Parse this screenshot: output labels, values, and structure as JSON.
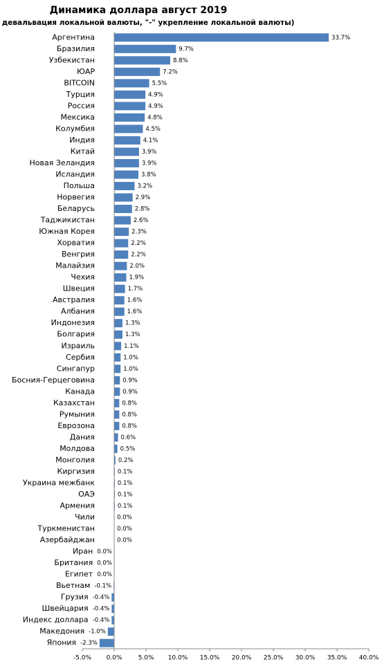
{
  "chart_data": {
    "type": "bar",
    "orientation": "horizontal",
    "title": "Динамика доллара август 2019",
    "subtitle": "(\"+\" девальвация локальной валюты, \"-\" укрепление локальной валюты)",
    "color": "#4f81bd",
    "categories": [
      "Аргентина",
      "Бразилия",
      "Узбекистан",
      "ЮАР",
      "BITCOIN",
      "Турция",
      "Россия",
      "Мексика",
      "Колумбия",
      "Индия",
      "Китай",
      "Новая Зеландия",
      "Исландия",
      "Польша",
      "Норвегия",
      "Беларусь",
      "Таджикистан",
      "Южная Корея",
      "Хорватия",
      "Венгрия",
      "Малайзия",
      "Чехия",
      "Швеция",
      "Австралия",
      "Албания",
      "Индонезия",
      "Болгария",
      "Израиль",
      "Сербия",
      "Сингапур",
      "Босния-Герцеговина",
      "Канада",
      "Казахстан",
      "Румыния",
      "Еврозона",
      "Дания",
      "Молдова",
      "Монголия",
      "Киргизия",
      "Украина межбанк",
      "ОАЭ",
      "Армения",
      "Чили",
      "Туркменистан",
      "Азербайджан",
      "Иран",
      "Британия",
      "Египет",
      "Вьетнам",
      "Грузия",
      "Швейцария",
      "Индекс доллара",
      "Македония",
      "Япония"
    ],
    "values": [
      33.7,
      9.7,
      8.8,
      7.2,
      5.5,
      4.9,
      4.9,
      4.8,
      4.5,
      4.1,
      3.9,
      3.9,
      3.8,
      3.2,
      2.9,
      2.8,
      2.6,
      2.3,
      2.2,
      2.2,
      2.0,
      1.9,
      1.7,
      1.6,
      1.6,
      1.3,
      1.3,
      1.1,
      1.0,
      1.0,
      0.9,
      0.9,
      0.8,
      0.8,
      0.8,
      0.6,
      0.5,
      0.2,
      0.1,
      0.1,
      0.1,
      0.1,
      0.02,
      0.02,
      0.02,
      -0.02,
      -0.02,
      -0.02,
      -0.1,
      -0.4,
      -0.4,
      -0.4,
      -1.0,
      -2.3
    ],
    "value_labels": [
      "33.7%",
      "9.7%",
      "8.8%",
      "7.2%",
      "5.5%",
      "4.9%",
      "4.9%",
      "4.8%",
      "4.5%",
      "4.1%",
      "3.9%",
      "3.9%",
      "3.8%",
      "3.2%",
      "2.9%",
      "2.8%",
      "2.6%",
      "2.3%",
      "2.2%",
      "2.2%",
      "2.0%",
      "1.9%",
      "1.7%",
      "1.6%",
      "1.6%",
      "1.3%",
      "1.3%",
      "1.1%",
      "1.0%",
      "1.0%",
      "0.9%",
      "0.9%",
      "0.8%",
      "0.8%",
      "0.8%",
      "0.6%",
      "0.5%",
      "0.2%",
      "0.1%",
      "0.1%",
      "0.1%",
      "0.1%",
      "0.0%",
      "0.0%",
      "0.0%",
      "0.0%",
      "0.0%",
      "0.0%",
      "-0.1%",
      "-0.4%",
      "-0.4%",
      "-0.4%",
      "-1.0%",
      "-2.3%"
    ],
    "xlim": [
      -5,
      40
    ],
    "xticks": [
      {
        "value": -5,
        "label": "-5.0%"
      },
      {
        "value": 0,
        "label": "0.0%"
      },
      {
        "value": 5,
        "label": "5.0%"
      },
      {
        "value": 10,
        "label": "10.0%"
      },
      {
        "value": 15,
        "label": "15.0%"
      },
      {
        "value": 20,
        "label": "20.0%"
      },
      {
        "value": 25,
        "label": "25.0%"
      },
      {
        "value": 30,
        "label": "30.0%"
      },
      {
        "value": 35,
        "label": "35.0%"
      },
      {
        "value": 40,
        "label": "40.0%"
      }
    ],
    "grid": false
  }
}
